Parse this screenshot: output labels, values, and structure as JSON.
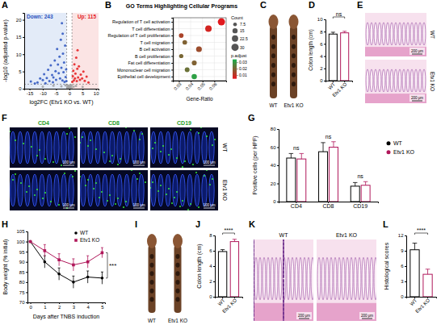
{
  "chart_data": [
    {
      "panel_label": "A",
      "type": "scatter",
      "x_label": "log2FC (Etv1 KO vs. WT)",
      "y_label": "-log10 (adjusted p-value)",
      "xlim": [
        -17,
        11
      ],
      "xticks": [
        -15,
        -10,
        -5,
        0,
        5,
        10
      ],
      "ylim": [
        0,
        22
      ],
      "yticks": [
        0,
        5,
        10,
        15,
        20
      ],
      "vlines": [
        -1,
        1
      ],
      "hlines": [
        1.3
      ],
      "series": [
        {
          "name": "Down: 243",
          "color": "#2a52be",
          "x": [
            -14.5,
            -12,
            -11,
            -10,
            -9.5,
            -8.5,
            -8,
            -7.5,
            -7,
            -6.5,
            -6,
            -5.5,
            -5.2,
            -5,
            -4.6,
            -4.3,
            -4,
            -3.7,
            -3.5,
            -3.2,
            -3,
            -2.8,
            -2.6,
            -2.4,
            -2.2,
            -2,
            -1.8,
            -1.6,
            -1.4,
            -1.2,
            -1.1,
            -2.5,
            -6.2,
            -9,
            -13
          ],
          "values": [
            2.1,
            1.8,
            3.0,
            2.5,
            4.2,
            3.1,
            5.5,
            2.2,
            6.8,
            4.0,
            3.3,
            8.2,
            5.1,
            2.6,
            11.5,
            7.0,
            4.5,
            9.3,
            3.0,
            14.2,
            6.1,
            19.0,
            2.4,
            10.2,
            4.8,
            7.6,
            2.0,
            12.5,
            3.4,
            5.6,
            2.2,
            16.0,
            1.9,
            1.6,
            1.5
          ]
        },
        {
          "name": "Up: 115",
          "color": "#e41a1c",
          "x": [
            1.1,
            1.3,
            1.5,
            1.7,
            1.9,
            2.1,
            2.3,
            2.6,
            2.8,
            3.0,
            3.3,
            3.6,
            4.0,
            4.3,
            4.8,
            5.3,
            5.8,
            6.5,
            7.2,
            3.1
          ],
          "values": [
            2.0,
            3.6,
            5.2,
            2.4,
            7.1,
            3.0,
            4.4,
            9.0,
            2.2,
            5.8,
            3.3,
            6.5,
            2.6,
            4.1,
            3.0,
            5.0,
            2.3,
            3.5,
            1.8,
            11.2
          ]
        },
        {
          "color": "#a0a0a0",
          "x": [
            -0.8,
            -0.6,
            -0.4,
            -0.2,
            0,
            0.2,
            0.4,
            0.6,
            0.8,
            -0.5,
            0.3,
            -3,
            -6,
            2.5,
            5,
            -10,
            -1.5,
            1.6
          ],
          "values": [
            0.5,
            1.0,
            0.3,
            0.8,
            0.2,
            0.6,
            1.1,
            0.4,
            0.9,
            0.1,
            0.15,
            0.7,
            0.9,
            0.8,
            0.5,
            0.6,
            1.0,
            0.6
          ]
        }
      ]
    },
    {
      "panel_label": "B",
      "type": "dot",
      "title": "GO Terms Highlighting Cellular Programs",
      "x_label": "Gene-Ratio",
      "categories": [
        "Regulation of T cell activation",
        "T cell differentiation",
        "Regulation of T cell proliferation",
        "T cell migration",
        "B cell activation",
        "B cell proliferation",
        "Fat cell differentiation",
        "Mononuclear cell migration",
        "Epithelial cell development"
      ],
      "values": [
        0.066,
        0.055,
        0.032,
        0.035,
        0.047,
        0.032,
        0.043,
        0.037,
        0.043
      ],
      "size": [
        30,
        24,
        12,
        12,
        19,
        10,
        14,
        13,
        16
      ],
      "p_adjust": [
        0.006,
        0.008,
        0.014,
        0.02,
        0.016,
        0.021,
        0.02,
        0.023,
        0.032
      ],
      "xlim": [
        0.025,
        0.07
      ],
      "xticks": [
        0.03,
        0.04,
        0.05,
        0.06
      ],
      "grid": true,
      "size_label": "Count",
      "size_range": [
        0,
        30
      ],
      "size_ticks": [
        7.5,
        15,
        22.5,
        30
      ],
      "color_label": "p.adjust",
      "color_range": [
        0.005,
        0.035
      ],
      "color_ticks": [
        0.03,
        0.02,
        0.01
      ]
    },
    {
      "panel_label": "D",
      "type": "bar",
      "y_label": "Colon length (cm)",
      "categories": [
        "WT",
        "Etv1 KO"
      ],
      "values": [
        7.6,
        7.8
      ],
      "errors": [
        0.3,
        0.25
      ],
      "colors": [
        "#000000",
        "#b0175a"
      ],
      "ylim": [
        0,
        10
      ],
      "yticks": [
        0,
        2,
        4,
        6,
        8,
        10
      ],
      "annotations": [
        "ns"
      ]
    },
    {
      "panel_label": "G",
      "type": "bar",
      "y_label": "Positive cells (per HPF)",
      "categories": [
        "CD4",
        "CD8",
        "CD19"
      ],
      "series": [
        {
          "name": "WT",
          "color": "#000000",
          "values": [
            48,
            55,
            17
          ],
          "errors": [
            5,
            10,
            4
          ]
        },
        {
          "name": "Etv1 KO",
          "color": "#b0175a",
          "values": [
            47,
            60,
            18
          ],
          "errors": [
            6,
            6,
            4
          ]
        }
      ],
      "ylim": [
        0,
        80
      ],
      "yticks": [
        0,
        20,
        40,
        60,
        80
      ],
      "legend": "right",
      "annotations": [
        "ns",
        "ns",
        "ns"
      ]
    },
    {
      "panel_label": "H",
      "type": "line",
      "x_label": "Days after TNBS induction",
      "y_label": "Body weight (% initial)",
      "x": [
        0,
        1,
        2,
        3,
        4,
        5
      ],
      "xlim": [
        -0.2,
        5.2
      ],
      "xticks": [
        0,
        1,
        2,
        3,
        4,
        5
      ],
      "ylim": [
        70,
        105
      ],
      "yticks": [
        70,
        75,
        80,
        85,
        90,
        95,
        100,
        105
      ],
      "series": [
        {
          "name": "WT",
          "color": "#000000",
          "marker": "circle",
          "values": [
            100,
            90,
            84,
            80,
            82.5,
            82
          ],
          "errors": [
            0,
            3,
            3,
            3,
            3,
            3
          ]
        },
        {
          "name": "Etv1 KO",
          "color": "#b0175a",
          "marker": "square",
          "values": [
            100,
            95.5,
            91,
            88.5,
            90,
            94.5
          ],
          "errors": [
            0,
            3,
            3,
            3,
            3,
            2.5
          ]
        }
      ],
      "legend": "top-right",
      "annotations": [
        "***"
      ]
    },
    {
      "panel_label": "J",
      "type": "bar",
      "y_label": "Colon length (cm)",
      "categories": [
        "WT",
        "Etv1 KO"
      ],
      "values": [
        5.9,
        7.2
      ],
      "errors": [
        0.25,
        0.3
      ],
      "colors": [
        "#000000",
        "#b0175a"
      ],
      "ylim": [
        0,
        8
      ],
      "yticks": [
        0,
        2,
        4,
        6,
        8
      ],
      "annotations": [
        "****"
      ]
    },
    {
      "panel_label": "L",
      "type": "bar",
      "y_label": "Histological scores",
      "categories": [
        "WT",
        "Etv1 KO"
      ],
      "values": [
        9.2,
        4.4
      ],
      "errors": [
        1.3,
        1.0
      ],
      "colors": [
        "#000000",
        "#b0175a"
      ],
      "ylim": [
        0,
        12
      ],
      "yticks": [
        0,
        3,
        6,
        9,
        12
      ],
      "annotations": [
        "****"
      ]
    }
  ],
  "image_panels": [
    {
      "panel_label": "C",
      "type": "photo",
      "labels": [
        "WT",
        "Etv1 KO"
      ]
    },
    {
      "panel_label": "E",
      "type": "histology",
      "labels": [
        "WT",
        "Etv1 KO"
      ],
      "scale_bar": "200 μm"
    },
    {
      "panel_label": "F",
      "type": "immunofluorescence",
      "columns": [
        "CD4",
        "CD8",
        "CD19"
      ],
      "rows": [
        "WT",
        "Etv1 KO"
      ],
      "scale_bar": "100 μm"
    },
    {
      "panel_label": "I",
      "type": "photo",
      "labels": [
        "WT",
        "Etv1 KO"
      ]
    },
    {
      "panel_label": "K",
      "type": "histology",
      "labels": [
        "WT",
        "Etv1 KO"
      ],
      "scale_bar": "200 μm"
    }
  ]
}
